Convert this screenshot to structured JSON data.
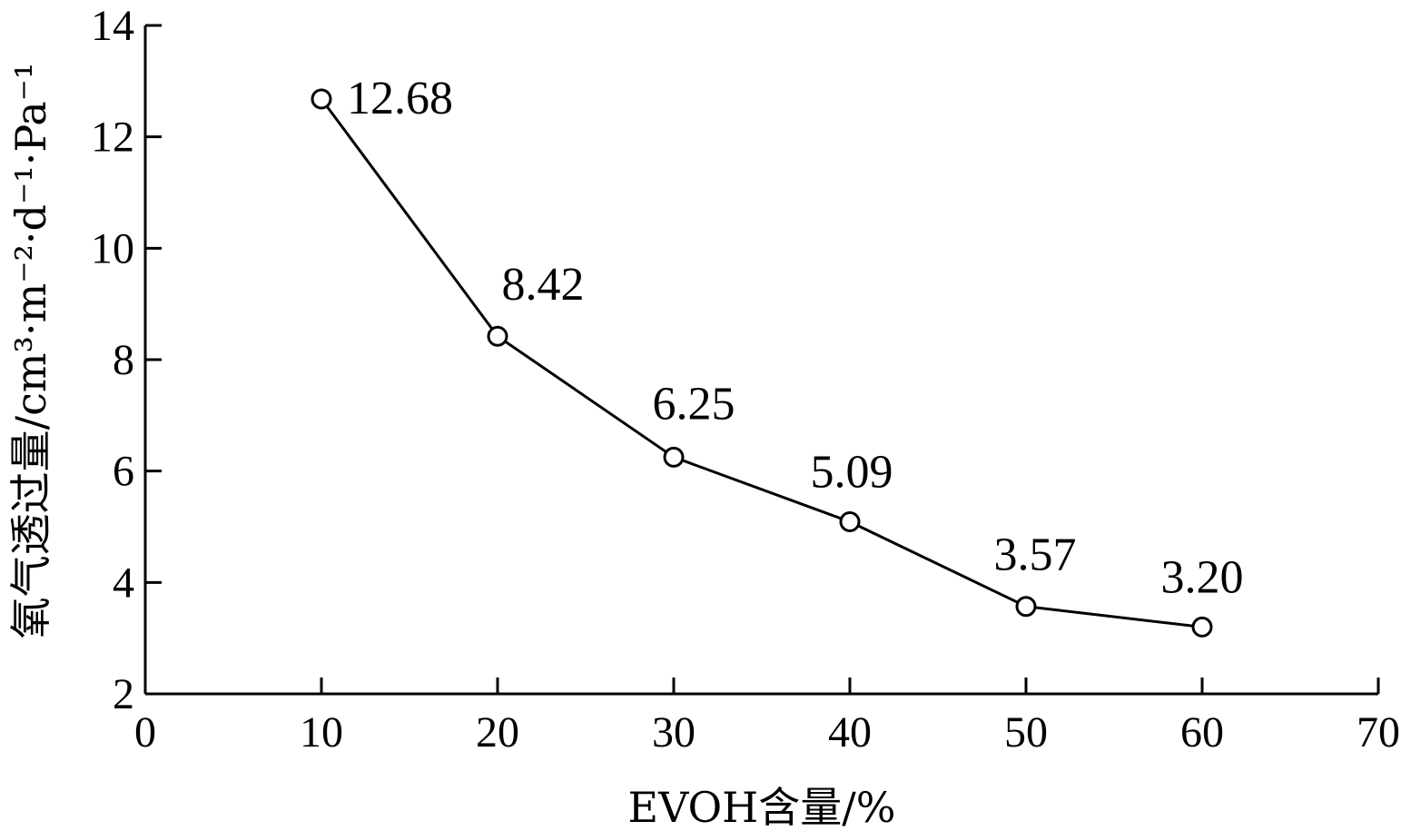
{
  "chart_data": {
    "type": "line",
    "x": [
      10,
      20,
      30,
      40,
      50,
      60
    ],
    "series": [
      {
        "values": [
          12.68,
          8.42,
          6.25,
          5.09,
          3.57,
          3.2
        ],
        "data_labels": [
          "12.68",
          "8.42",
          "6.25",
          "5.09",
          "3.57",
          "3.20"
        ],
        "marker": "open-circle",
        "color": "#000000"
      }
    ],
    "xlabel": "EVOH含量/%",
    "ylabel": "氧气透过量/cm³·m⁻²·d⁻¹·Pa⁻¹",
    "xlim": [
      0,
      70
    ],
    "ylim": [
      2,
      14
    ],
    "x_ticks": [
      "0",
      "10",
      "20",
      "30",
      "40",
      "50",
      "60",
      "70"
    ],
    "y_ticks": [
      "2",
      "4",
      "6",
      "8",
      "10",
      "12",
      "14"
    ],
    "grid": false,
    "legend": false
  }
}
